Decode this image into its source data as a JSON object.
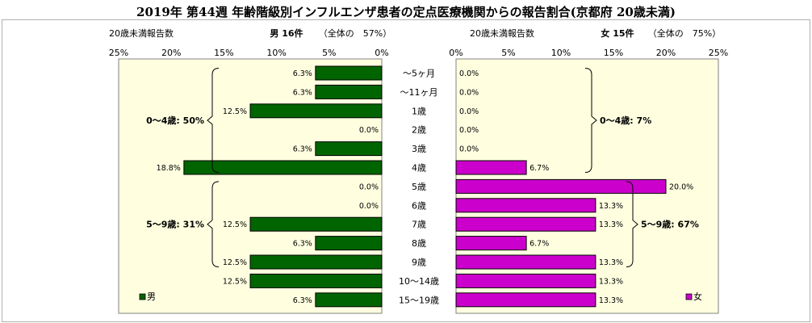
{
  "title": "2019年 第44週 年齢階級別インフルエンザ患者の定点医療機関からの報告割合(京都府 20歳未満)",
  "chart_data": {
    "type": "bar",
    "orientation": "horizontal",
    "categories": [
      "〜5ヶ月",
      "〜11ヶ月",
      "1歳",
      "2歳",
      "3歳",
      "4歳",
      "5歳",
      "6歳",
      "7歳",
      "8歳",
      "9歳",
      "10〜14歳",
      "15〜19歳"
    ],
    "xlim": [
      0,
      25
    ],
    "ticks": [
      "0%",
      "5%",
      "10%",
      "15%",
      "20%",
      "25%"
    ],
    "tick_values": [
      0,
      5,
      10,
      15,
      20,
      25
    ],
    "grid": false,
    "series": [
      {
        "name": "男",
        "side": "left",
        "color": "#006400",
        "axis_title": "20歳未満報告数",
        "header": "男 16件",
        "share": "（全体の　57%）",
        "values": [
          6.3,
          6.3,
          12.5,
          0.0,
          6.3,
          18.8,
          0.0,
          0.0,
          12.5,
          6.3,
          12.5,
          12.5,
          6.3
        ],
        "value_labels": [
          "6.3%",
          "6.3%",
          "12.5%",
          "0.0%",
          "6.3%",
          "18.8%",
          "0.0%",
          "0.0%",
          "12.5%",
          "6.3%",
          "12.5%",
          "12.5%",
          "6.3%"
        ],
        "legend": "男",
        "brackets": [
          {
            "from": 0,
            "to": 5,
            "label": "0〜4歳: 50%"
          },
          {
            "from": 6,
            "to": 10,
            "label": "5〜9歳: 31%"
          }
        ]
      },
      {
        "name": "女",
        "side": "right",
        "color": "#cc00cc",
        "axis_title": "20歳未満報告数",
        "header": "女 15件",
        "share": "（全体の　75%）",
        "values": [
          0.0,
          0.0,
          0.0,
          0.0,
          0.0,
          6.7,
          20.0,
          13.3,
          13.3,
          6.7,
          13.3,
          13.3,
          13.3
        ],
        "value_labels": [
          "0.0%",
          "0.0%",
          "0.0%",
          "0.0%",
          "0.0%",
          "6.7%",
          "20.0%",
          "13.3%",
          "13.3%",
          "6.7%",
          "13.3%",
          "13.3%",
          "13.3%"
        ],
        "legend": "女",
        "brackets": [
          {
            "from": 0,
            "to": 5,
            "label": "0〜4歳: 7%"
          },
          {
            "from": 6,
            "to": 10,
            "label": "5〜9歳: 67%"
          }
        ]
      }
    ]
  }
}
